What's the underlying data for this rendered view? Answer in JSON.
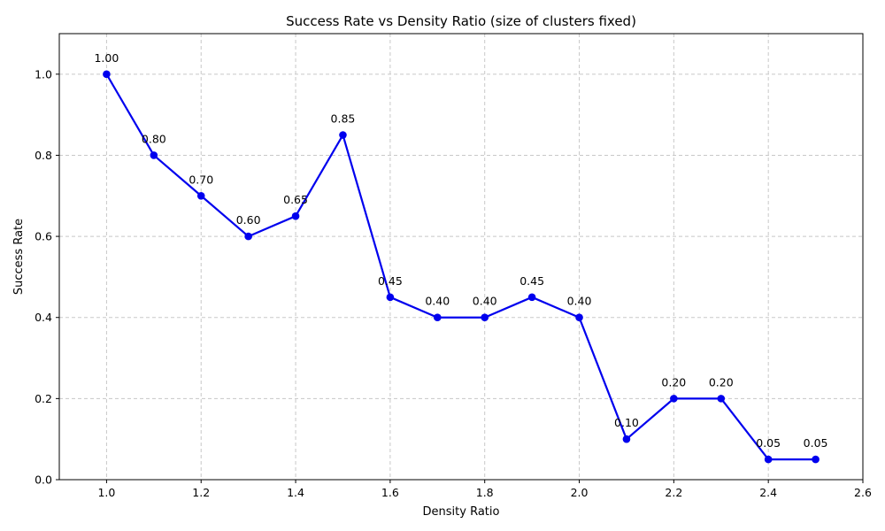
{
  "chart_data": {
    "type": "line",
    "title": "Success Rate vs Density Ratio (size of clusters fixed)",
    "xlabel": "Density Ratio",
    "ylabel": "Success Rate",
    "xlim": [
      0.9,
      2.6
    ],
    "ylim": [
      0.0,
      1.1
    ],
    "xticks": [
      1.0,
      1.2,
      1.4,
      1.6,
      1.8,
      2.0,
      2.2,
      2.4,
      2.6
    ],
    "xtick_labels": [
      "1.0",
      "1.2",
      "1.4",
      "1.6",
      "1.8",
      "2.0",
      "2.2",
      "2.4",
      "2.6"
    ],
    "yticks": [
      0.0,
      0.2,
      0.4,
      0.6,
      0.8,
      1.0
    ],
    "ytick_labels": [
      "0.0",
      "0.2",
      "0.4",
      "0.6",
      "0.8",
      "1.0"
    ],
    "grid": true,
    "series": [
      {
        "color": "#0000ee",
        "marker": "circle",
        "x": [
          1.0,
          1.1,
          1.2,
          1.3,
          1.4,
          1.5,
          1.6,
          1.7,
          1.8,
          1.9,
          2.0,
          2.1,
          2.2,
          2.3,
          2.4,
          2.5
        ],
        "y": [
          1.0,
          0.8,
          0.7,
          0.6,
          0.65,
          0.85,
          0.45,
          0.4,
          0.4,
          0.45,
          0.4,
          0.1,
          0.2,
          0.2,
          0.05,
          0.05
        ],
        "labels": [
          "1.00",
          "0.80",
          "0.70",
          "0.60",
          "0.65",
          "0.85",
          "0.45",
          "0.40",
          "0.40",
          "0.45",
          "0.40",
          "0.10",
          "0.20",
          "0.20",
          "0.05",
          "0.05"
        ]
      }
    ]
  }
}
